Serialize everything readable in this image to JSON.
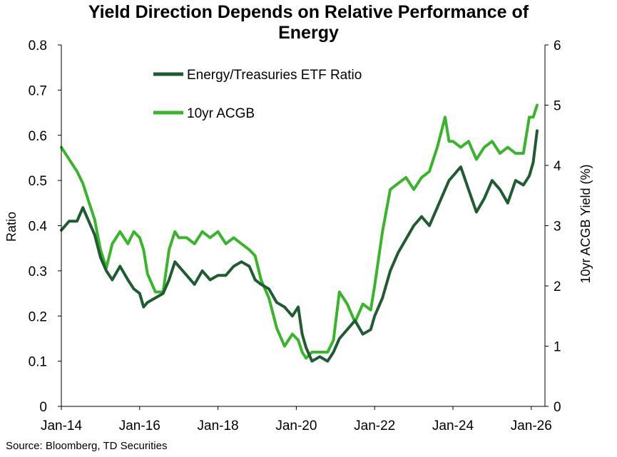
{
  "chart_data": {
    "type": "line",
    "title_lines": [
      "Yield Direction Depends on Relative Performance of",
      "Energy"
    ],
    "ylabel_left": "Ratio",
    "ylabel_right": "10yr ACGB Yield (%)",
    "ylim_left": [
      0,
      0.8
    ],
    "ylim_right": [
      0,
      6
    ],
    "left_ticks": [
      "0",
      "0.1",
      "0.2",
      "0.3",
      "0.4",
      "0.5",
      "0.6",
      "0.7",
      "0.8"
    ],
    "right_ticks": [
      "0",
      "1",
      "2",
      "3",
      "4",
      "5",
      "6"
    ],
    "x_ticks": [
      "Jan-14",
      "Jan-16",
      "Jan-18",
      "Jan-20",
      "Jan-22",
      "Jan-24",
      "Jan-26"
    ],
    "legend_position": "top-left",
    "grid": false,
    "colors": {
      "ratio": "#1f5c32",
      "yield": "#38b52a"
    },
    "series": [
      {
        "name": "Energy/Treasuries ETF Ratio",
        "axis": "left",
        "x": [
          2014.0,
          2014.2,
          2014.4,
          2014.55,
          2014.7,
          2014.85,
          2015.0,
          2015.15,
          2015.3,
          2015.5,
          2015.7,
          2015.85,
          2016.0,
          2016.1,
          2016.2,
          2016.4,
          2016.6,
          2016.75,
          2016.9,
          2017.0,
          2017.2,
          2017.4,
          2017.6,
          2017.8,
          2018.0,
          2018.2,
          2018.4,
          2018.6,
          2018.8,
          2018.95,
          2019.1,
          2019.3,
          2019.5,
          2019.7,
          2019.9,
          2020.05,
          2020.15,
          2020.25,
          2020.4,
          2020.6,
          2020.8,
          2020.95,
          2021.1,
          2021.3,
          2021.5,
          2021.7,
          2021.9,
          2022.0,
          2022.2,
          2022.4,
          2022.6,
          2022.8,
          2023.0,
          2023.2,
          2023.4,
          2023.6,
          2023.8,
          2023.9,
          2024.0,
          2024.2,
          2024.4,
          2024.6,
          2024.8,
          2025.0,
          2025.2,
          2025.4,
          2025.6,
          2025.8,
          2025.95,
          2026.05,
          2026.15
        ],
        "values": [
          0.39,
          0.41,
          0.41,
          0.44,
          0.41,
          0.38,
          0.33,
          0.3,
          0.28,
          0.31,
          0.28,
          0.26,
          0.25,
          0.22,
          0.23,
          0.24,
          0.25,
          0.28,
          0.32,
          0.31,
          0.29,
          0.27,
          0.3,
          0.28,
          0.29,
          0.29,
          0.31,
          0.32,
          0.31,
          0.28,
          0.27,
          0.26,
          0.23,
          0.22,
          0.2,
          0.22,
          0.16,
          0.13,
          0.1,
          0.11,
          0.1,
          0.12,
          0.15,
          0.17,
          0.19,
          0.16,
          0.17,
          0.2,
          0.24,
          0.3,
          0.34,
          0.37,
          0.4,
          0.42,
          0.4,
          0.44,
          0.48,
          0.5,
          0.51,
          0.53,
          0.48,
          0.43,
          0.46,
          0.5,
          0.48,
          0.45,
          0.5,
          0.49,
          0.51,
          0.54,
          0.61
        ]
      },
      {
        "name": "10yr ACGB",
        "axis": "right",
        "x": [
          2014.0,
          2014.2,
          2014.4,
          2014.55,
          2014.7,
          2014.85,
          2015.0,
          2015.15,
          2015.3,
          2015.5,
          2015.7,
          2015.85,
          2016.0,
          2016.1,
          2016.2,
          2016.4,
          2016.6,
          2016.75,
          2016.9,
          2017.0,
          2017.2,
          2017.4,
          2017.6,
          2017.8,
          2018.0,
          2018.2,
          2018.4,
          2018.6,
          2018.8,
          2018.95,
          2019.1,
          2019.3,
          2019.5,
          2019.7,
          2019.9,
          2020.05,
          2020.15,
          2020.25,
          2020.4,
          2020.6,
          2020.8,
          2020.95,
          2021.1,
          2021.3,
          2021.5,
          2021.7,
          2021.9,
          2022.0,
          2022.2,
          2022.4,
          2022.6,
          2022.8,
          2023.0,
          2023.2,
          2023.4,
          2023.6,
          2023.8,
          2023.9,
          2024.0,
          2024.2,
          2024.4,
          2024.6,
          2024.8,
          2025.0,
          2025.2,
          2025.4,
          2025.6,
          2025.8,
          2025.95,
          2026.05,
          2026.15
        ],
        "values": [
          4.3,
          4.1,
          3.9,
          3.7,
          3.4,
          3.1,
          2.6,
          2.3,
          2.7,
          2.9,
          2.7,
          2.9,
          2.8,
          2.6,
          2.2,
          1.9,
          1.9,
          2.6,
          2.9,
          2.8,
          2.8,
          2.7,
          2.9,
          2.8,
          2.9,
          2.7,
          2.8,
          2.7,
          2.6,
          2.5,
          2.1,
          1.8,
          1.3,
          1.0,
          1.2,
          1.1,
          0.9,
          0.8,
          0.9,
          0.9,
          0.9,
          1.1,
          1.9,
          1.7,
          1.4,
          1.7,
          1.6,
          2.0,
          2.9,
          3.6,
          3.7,
          3.8,
          3.6,
          3.8,
          3.9,
          4.3,
          4.8,
          4.4,
          4.4,
          4.3,
          4.4,
          4.1,
          4.3,
          4.4,
          4.2,
          4.3,
          4.2,
          4.2,
          4.8,
          4.8,
          5.0
        ]
      }
    ]
  },
  "source": "Source: Bloomberg, TD Securities"
}
